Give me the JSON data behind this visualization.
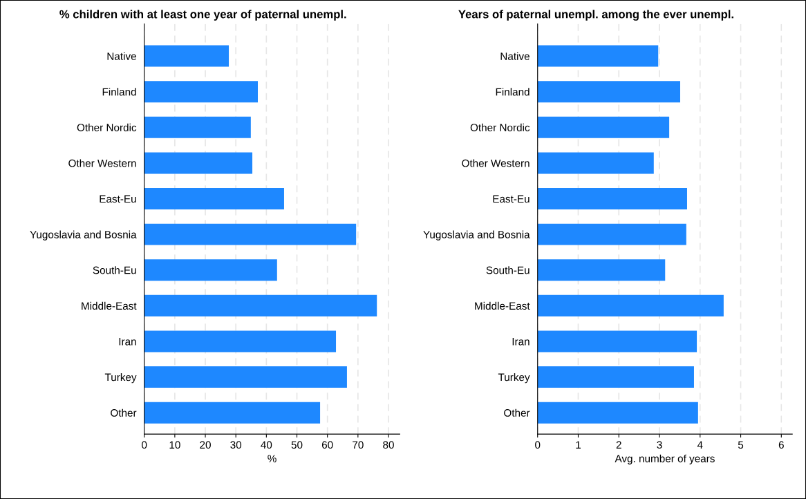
{
  "chart_data": [
    {
      "type": "bar",
      "orientation": "horizontal",
      "title": "% children with at least one year of paternal unempl.",
      "xlabel": "%",
      "categories": [
        "Native",
        "Finland",
        "Other Nordic",
        "Other Western",
        "East-Eu",
        "Yugoslavia and Bosnia",
        "South-Eu",
        "Middle-East",
        "Iran",
        "Turkey",
        "Other"
      ],
      "series": [
        {
          "color": "#1e88ff",
          "values": [
            27.7,
            37.2,
            34.9,
            35.4,
            45.8,
            69.4,
            43.5,
            76.2,
            62.8,
            66.4,
            57.6
          ]
        }
      ],
      "xlim": [
        0,
        83.7
      ],
      "xticks": [
        0,
        10,
        20,
        30,
        40,
        50,
        60,
        70,
        80
      ],
      "grid": "x"
    },
    {
      "type": "bar",
      "orientation": "horizontal",
      "title": "Years of paternal unempl. among the ever unempl.",
      "xlabel": "Avg. number of years",
      "categories": [
        "Native",
        "Finland",
        "Other Nordic",
        "Other Western",
        "East-Eu",
        "Yugoslavia and Bosnia",
        "South-Eu",
        "Middle-East",
        "Iran",
        "Turkey",
        "Other"
      ],
      "series": [
        {
          "color": "#1e88ff",
          "values": [
            2.97,
            3.51,
            3.24,
            2.86,
            3.68,
            3.66,
            3.14,
            4.58,
            3.92,
            3.85,
            3.95
          ]
        }
      ],
      "xlim": [
        0,
        6.27
      ],
      "xticks": [
        0,
        1,
        2,
        3,
        4,
        5,
        6
      ],
      "grid": "x"
    }
  ]
}
